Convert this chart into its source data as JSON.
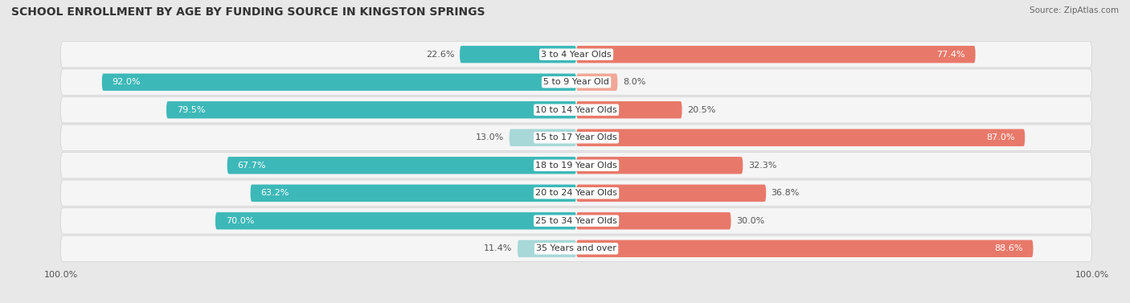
{
  "title": "SCHOOL ENROLLMENT BY AGE BY FUNDING SOURCE IN KINGSTON SPRINGS",
  "source": "Source: ZipAtlas.com",
  "categories": [
    "3 to 4 Year Olds",
    "5 to 9 Year Old",
    "10 to 14 Year Olds",
    "15 to 17 Year Olds",
    "18 to 19 Year Olds",
    "20 to 24 Year Olds",
    "25 to 34 Year Olds",
    "35 Years and over"
  ],
  "public_values": [
    22.6,
    92.0,
    79.5,
    13.0,
    67.7,
    63.2,
    70.0,
    11.4
  ],
  "private_values": [
    77.4,
    8.0,
    20.5,
    87.0,
    32.3,
    36.8,
    30.0,
    88.6
  ],
  "public_color": "#3db8b8",
  "public_color_light": "#a8d8d8",
  "private_color": "#e8796a",
  "private_color_light": "#f0a898",
  "bg_color": "#e8e8e8",
  "row_bg_color": "#f5f5f5",
  "row_border_color": "#d0d0d0",
  "title_fontsize": 10,
  "label_fontsize": 8,
  "value_fontsize": 8,
  "bar_height": 0.62,
  "xlim": 100,
  "axis_label_fontsize": 8
}
